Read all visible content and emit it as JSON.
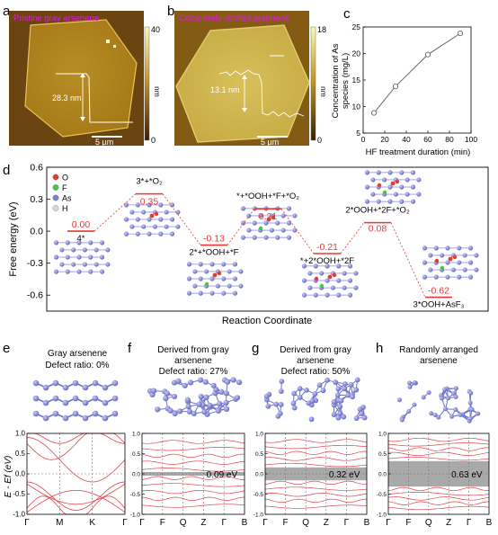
{
  "panel_letters": [
    "a",
    "b",
    "c",
    "d",
    "e",
    "f",
    "g",
    "h"
  ],
  "afm": {
    "a": {
      "title": "Pristine gray arsenene",
      "height_label": "28.3 nm",
      "scalebar_label": "5 µm",
      "colorbar_ticks": [
        "40",
        "0"
      ],
      "colorbar_unit": "nm",
      "colors": {
        "top": "#fbf7c0",
        "mid": "#b58a21",
        "bottom": "#3d1f05"
      }
    },
    "b": {
      "title": "Completely vitrified arsenene",
      "height_label": "13.1 nm",
      "scalebar_label": "5 µm",
      "colorbar_ticks": [
        "18",
        "0"
      ],
      "colorbar_unit": "nm"
    },
    "title_color": "#e020d0"
  },
  "chart_data": {
    "type": "line",
    "x": [
      10,
      30,
      60,
      90
    ],
    "y": [
      8.8,
      13.8,
      19.8,
      23.8
    ],
    "xlabel": "HF treatment duration (min)",
    "ylabel": "Concentration of As species (mg/L)",
    "ylabel_lines": [
      "Concentration of As",
      "species (mg/L)"
    ],
    "xlim": [
      0,
      100
    ],
    "ylim": [
      5,
      25
    ],
    "xticks": [
      0,
      20,
      40,
      60,
      80,
      100
    ],
    "yticks": [
      5,
      10,
      15,
      20,
      25
    ]
  },
  "reaction": {
    "ylabel": "Free energy (eV)",
    "xlabel": "Reaction Coordinate",
    "ylim": [
      -0.75,
      0.6
    ],
    "yticks": [
      "0.6",
      "0.3",
      "0.0",
      "-0.3",
      "-0.6"
    ],
    "legend": [
      {
        "label": "O",
        "color": "#e53935"
      },
      {
        "label": "F",
        "color": "#43c743"
      },
      {
        "label": "As",
        "color": "#7b7fd6"
      },
      {
        "label": "H",
        "color": "#d9d9d9"
      }
    ],
    "steps": [
      {
        "value": "0.00",
        "energy": 0.0,
        "label": "4*"
      },
      {
        "value": "0.35",
        "energy": 0.35,
        "label": "3*+*O₂"
      },
      {
        "value": "-0.13",
        "energy": -0.13,
        "label": "2*+*OOH+*F"
      },
      {
        "value": "0.21",
        "energy": 0.21,
        "label": "*+*OOH+*F+*O₂"
      },
      {
        "value": "-0.21",
        "energy": -0.21,
        "label": "*+2*OOH+*2F"
      },
      {
        "value": "0.08",
        "energy": 0.08,
        "label": "2*OOH+*2F+*O₂"
      },
      {
        "value": "-0.62",
        "energy": -0.62,
        "label": "3*OOH+AsF₃"
      }
    ],
    "level_color": "#e53935"
  },
  "bands": {
    "ylabel": "E - Ef (eV)",
    "yticks": [
      "1.0",
      "0.5",
      "0.0",
      "-0.5",
      "-1.0"
    ],
    "e": {
      "title_lines": [
        "Gray arsenene",
        "Defect ratio: 0%"
      ],
      "kpoints": [
        "Γ",
        "M",
        "K",
        "Γ"
      ],
      "gap": ""
    },
    "f": {
      "title_lines": [
        "Derived from gray",
        "arsenene",
        "Defect ratio: 27%"
      ],
      "kpoints": [
        "Γ",
        "F",
        "Q",
        "Z",
        "Γ",
        "B"
      ],
      "gap": "0.09 eV"
    },
    "g": {
      "title_lines": [
        "Derived from gray",
        "arsenene",
        "Defect ratio: 50%"
      ],
      "kpoints": [
        "Γ",
        "F",
        "Q",
        "Z",
        "Γ",
        "B"
      ],
      "gap": "0.32 eV"
    },
    "h": {
      "title_lines": [
        "Randomly arranged",
        "arsenene"
      ],
      "kpoints": [
        "Γ",
        "F",
        "Q",
        "Z",
        "Γ",
        "B"
      ],
      "gap": "0.63 eV"
    },
    "band_color": "#e0454a",
    "atom_color": "#6f73c9"
  }
}
